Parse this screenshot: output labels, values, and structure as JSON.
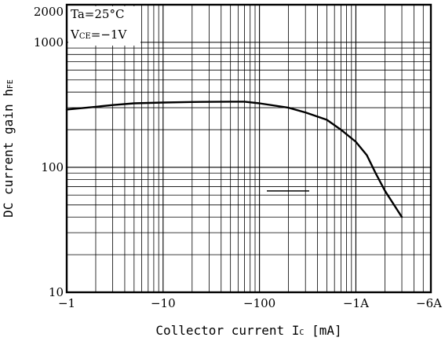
{
  "chart_data": {
    "type": "line",
    "title": "",
    "xlabel": "Collector current ",
    "xlabel_symbol": "I",
    "xlabel_subscript": "C",
    "xlabel_unit": " [mA]",
    "ylabel": "DC current gain ",
    "ylabel_symbol": "h",
    "ylabel_subscript": "FE",
    "x_scale": "log",
    "y_scale": "log",
    "x_range_abs_mA": [
      1,
      6000
    ],
    "y_range": [
      10,
      2000
    ],
    "x_tick_labels": [
      "−1",
      "−10",
      "−100",
      "−1A",
      "−6A"
    ],
    "x_tick_values_abs_mA": [
      1,
      10,
      100,
      1000,
      6000
    ],
    "y_tick_labels": [
      "2000",
      "1000",
      "100",
      "10"
    ],
    "y_tick_values": [
      2000,
      1000,
      100,
      10
    ],
    "grid": true,
    "annotations": {
      "ta_label": "Ta=25°C",
      "vce_prefix": "V",
      "vce_sub": "CE",
      "vce_value": "=−1V"
    },
    "series": [
      {
        "x_abs_mA": [
          1,
          2,
          3,
          5,
          10,
          20,
          50,
          70,
          100,
          200,
          300,
          500,
          700,
          1000,
          1300,
          1600,
          2000,
          3000
        ],
        "y": [
          290,
          305,
          315,
          325,
          330,
          333,
          335,
          335,
          325,
          300,
          275,
          240,
          200,
          160,
          125,
          90,
          65,
          40
        ]
      }
    ],
    "colors": {
      "line": "#000000",
      "grid": "#000000",
      "background": "#ffffff"
    }
  }
}
